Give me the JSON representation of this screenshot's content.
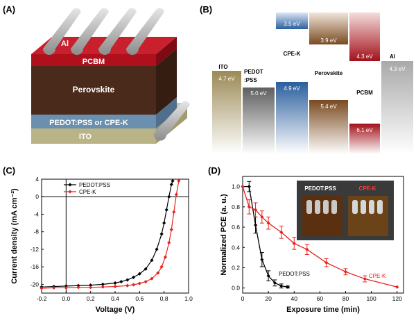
{
  "panels": {
    "a": "(A)",
    "b": "(B)",
    "c": "(C)",
    "d": "(D)"
  },
  "device": {
    "top_contacts": "Al",
    "layers": [
      "PCBM",
      "Perovskite",
      "PEDOT:PSS or CPE-K",
      "ITO"
    ]
  },
  "energy_levels": {
    "columns": [
      {
        "name": "ITO",
        "levels": [
          "4.7 eV"
        ],
        "color": "#9b8a55"
      },
      {
        "name": "PEDOT\n:PSS",
        "levels": [
          "5.0 eV"
        ],
        "color": "#6b6b6b"
      },
      {
        "name": "CPE-K",
        "levels": [
          "3.5 eV",
          "4.9 eV"
        ],
        "color": "#2a5f9e"
      },
      {
        "name": "Perovskite",
        "levels": [
          "3.9 eV",
          "5.4 eV"
        ],
        "color": "#7a4a20"
      },
      {
        "name": "PCBM",
        "levels": [
          "4.3 eV",
          "6.1 eV"
        ],
        "color": "#a3101a"
      },
      {
        "name": "Al",
        "levels": [
          "4.3 eV"
        ],
        "color": "#a9a9a9"
      }
    ]
  },
  "chart_data": [
    {
      "type": "line",
      "title": "",
      "xlabel": "Voltage (V)",
      "ylabel": "Current density (mA cm⁻²)",
      "xlim": [
        -0.2,
        1.0
      ],
      "ylim": [
        -22,
        4
      ],
      "xticks": [
        "-0.2",
        "0.0",
        "0.2",
        "0.4",
        "0.6",
        "0.8",
        "1.0"
      ],
      "yticks": [
        "4",
        "0",
        "-4",
        "-8",
        "-12",
        "-16",
        "-20"
      ],
      "legend_position": "top-left",
      "series": [
        {
          "name": "PEDOT:PSS",
          "color": "#000000",
          "marker": "diamond",
          "x": [
            -0.2,
            -0.1,
            0.0,
            0.1,
            0.2,
            0.3,
            0.4,
            0.45,
            0.5,
            0.55,
            0.6,
            0.65,
            0.7,
            0.74,
            0.78,
            0.8,
            0.82,
            0.84,
            0.86,
            0.87
          ],
          "y": [
            -20.6,
            -20.5,
            -20.4,
            -20.3,
            -20.2,
            -20.0,
            -19.7,
            -19.4,
            -19.0,
            -18.4,
            -17.6,
            -16.5,
            -14.5,
            -12.0,
            -8.5,
            -6.0,
            -3.0,
            0.0,
            2.8,
            3.6
          ]
        },
        {
          "name": "CPE-K",
          "color": "#e8201c",
          "marker": "diamond",
          "x": [
            -0.2,
            -0.1,
            0.0,
            0.1,
            0.2,
            0.3,
            0.4,
            0.5,
            0.55,
            0.6,
            0.65,
            0.7,
            0.75,
            0.78,
            0.81,
            0.84,
            0.86,
            0.88,
            0.9,
            0.92
          ],
          "y": [
            -20.9,
            -20.8,
            -20.8,
            -20.7,
            -20.7,
            -20.6,
            -20.5,
            -20.3,
            -20.1,
            -19.8,
            -19.4,
            -18.7,
            -17.4,
            -16.0,
            -13.8,
            -10.5,
            -7.5,
            -3.5,
            0.5,
            3.6
          ]
        }
      ]
    },
    {
      "type": "line",
      "title": "",
      "xlabel": "Exposure time (min)",
      "ylabel": "Normalized PCE (a. u.)",
      "xlim": [
        0,
        125
      ],
      "ylim": [
        -0.05,
        1.1
      ],
      "xticks": [
        "0",
        "20",
        "40",
        "60",
        "80",
        "100",
        "120"
      ],
      "yticks": [
        "1.0",
        "0.8",
        "0.6",
        "0.4",
        "0.2",
        "0.0"
      ],
      "annotations": [
        "PEDOT:PSS",
        "CPE-K"
      ],
      "inset_labels": [
        "PEDOT:PSS",
        "CPE-K"
      ],
      "series": [
        {
          "name": "PEDOT:PSS",
          "color": "#000000",
          "x": [
            0,
            5,
            10,
            15,
            20,
            25,
            30,
            35
          ],
          "y": [
            1.0,
            1.0,
            0.62,
            0.28,
            0.12,
            0.05,
            0.02,
            0.01
          ],
          "err": [
            0.0,
            0.05,
            0.08,
            0.07,
            0.05,
            0.03,
            0.02,
            0.01
          ]
        },
        {
          "name": "CPE-K",
          "color": "#e8201c",
          "x": [
            0,
            5,
            10,
            15,
            20,
            30,
            40,
            50,
            65,
            80,
            95,
            120
          ],
          "y": [
            1.0,
            0.8,
            0.77,
            0.7,
            0.64,
            0.55,
            0.44,
            0.38,
            0.25,
            0.16,
            0.09,
            0.01
          ],
          "err": [
            0.0,
            0.07,
            0.07,
            0.06,
            0.06,
            0.06,
            0.06,
            0.05,
            0.04,
            0.03,
            0.03,
            0.0
          ]
        }
      ]
    }
  ]
}
